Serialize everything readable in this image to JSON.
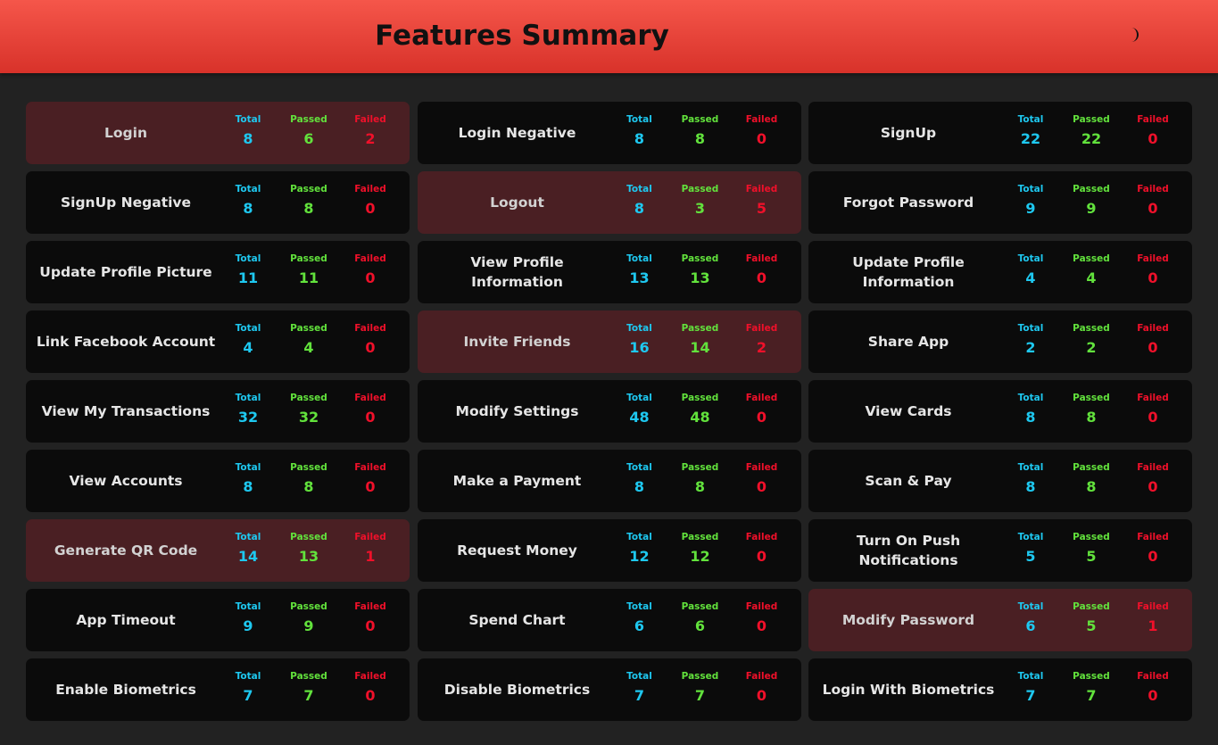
{
  "header": {
    "title": "Features Summary",
    "theme_icon": "moon-icon"
  },
  "labels": {
    "total": "Total",
    "passed": "Passed",
    "failed": "Failed"
  },
  "colors": {
    "header_top": "#f5564a",
    "header_bottom": "#d8322a",
    "background": "#222222",
    "card": "#0b0b0b",
    "card_failed": "#4a1f23",
    "total": "#1ec8f0",
    "passed": "#62e23c",
    "failed": "#f0102a"
  },
  "features": [
    {
      "name": "Login",
      "total": "8",
      "passed": "6",
      "failed": "2"
    },
    {
      "name": "Login Negative",
      "total": "8",
      "passed": "8",
      "failed": "0"
    },
    {
      "name": "SignUp",
      "total": "22",
      "passed": "22",
      "failed": "0"
    },
    {
      "name": "SignUp Negative",
      "total": "8",
      "passed": "8",
      "failed": "0"
    },
    {
      "name": "Logout",
      "total": "8",
      "passed": "3",
      "failed": "5"
    },
    {
      "name": "Forgot Password",
      "total": "9",
      "passed": "9",
      "failed": "0"
    },
    {
      "name": "Update Profile Picture",
      "total": "11",
      "passed": "11",
      "failed": "0"
    },
    {
      "name": "View Profile Information",
      "total": "13",
      "passed": "13",
      "failed": "0"
    },
    {
      "name": "Update Profile Information",
      "total": "4",
      "passed": "4",
      "failed": "0"
    },
    {
      "name": "Link Facebook Account",
      "total": "4",
      "passed": "4",
      "failed": "0"
    },
    {
      "name": "Invite Friends",
      "total": "16",
      "passed": "14",
      "failed": "2"
    },
    {
      "name": "Share App",
      "total": "2",
      "passed": "2",
      "failed": "0"
    },
    {
      "name": "View My Transactions",
      "total": "32",
      "passed": "32",
      "failed": "0"
    },
    {
      "name": "Modify Settings",
      "total": "48",
      "passed": "48",
      "failed": "0"
    },
    {
      "name": "View Cards",
      "total": "8",
      "passed": "8",
      "failed": "0"
    },
    {
      "name": "View Accounts",
      "total": "8",
      "passed": "8",
      "failed": "0"
    },
    {
      "name": "Make a Payment",
      "total": "8",
      "passed": "8",
      "failed": "0"
    },
    {
      "name": "Scan & Pay",
      "total": "8",
      "passed": "8",
      "failed": "0"
    },
    {
      "name": "Generate QR Code",
      "total": "14",
      "passed": "13",
      "failed": "1"
    },
    {
      "name": "Request Money",
      "total": "12",
      "passed": "12",
      "failed": "0"
    },
    {
      "name": "Turn On Push Notifications",
      "total": "5",
      "passed": "5",
      "failed": "0"
    },
    {
      "name": "App Timeout",
      "total": "9",
      "passed": "9",
      "failed": "0"
    },
    {
      "name": "Spend Chart",
      "total": "6",
      "passed": "6",
      "failed": "0"
    },
    {
      "name": "Modify Password",
      "total": "6",
      "passed": "5",
      "failed": "1"
    },
    {
      "name": "Enable Biometrics",
      "total": "7",
      "passed": "7",
      "failed": "0"
    },
    {
      "name": "Disable Biometrics",
      "total": "7",
      "passed": "7",
      "failed": "0"
    },
    {
      "name": "Login With Biometrics",
      "total": "7",
      "passed": "7",
      "failed": "0"
    }
  ]
}
